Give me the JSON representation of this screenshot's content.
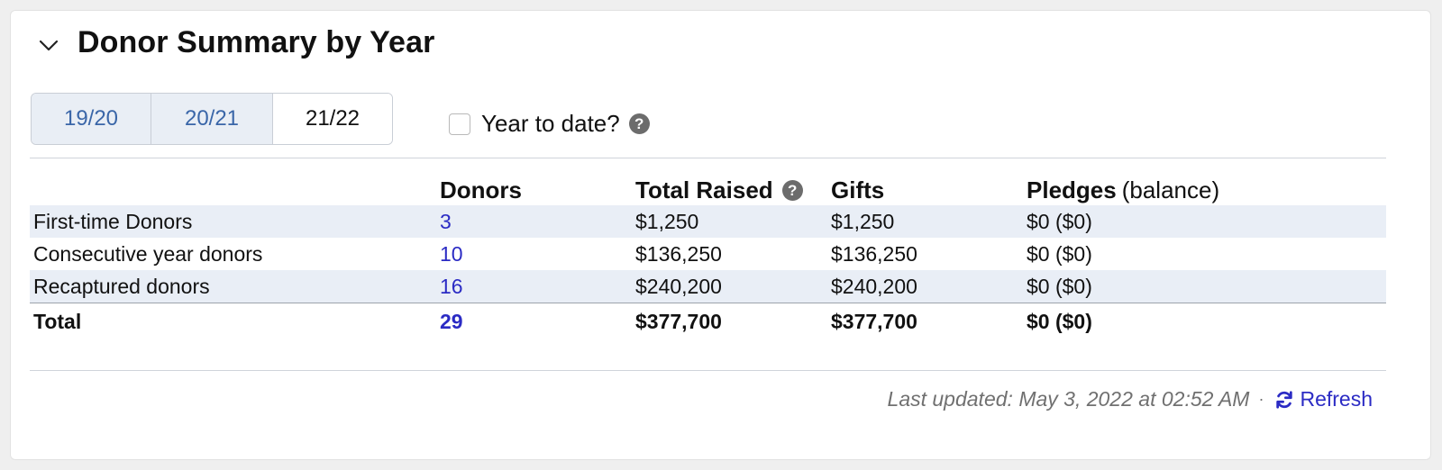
{
  "panel": {
    "title": "Donor Summary by Year"
  },
  "tabs": [
    {
      "label": "19/20",
      "active": false
    },
    {
      "label": "20/21",
      "active": false
    },
    {
      "label": "21/22",
      "active": true
    }
  ],
  "year_to_date": {
    "label": "Year to date?",
    "checked": false
  },
  "table": {
    "headers": {
      "donors": "Donors",
      "total_raised": "Total Raised",
      "gifts": "Gifts",
      "pledges": "Pledges",
      "pledges_note": "(balance)"
    },
    "rows": [
      {
        "label": "First-time Donors",
        "donors": "3",
        "total_raised": "$1,250",
        "gifts": "$1,250",
        "pledges": "$0 ($0)"
      },
      {
        "label": "Consecutive year donors",
        "donors": "10",
        "total_raised": "$136,250",
        "gifts": "$136,250",
        "pledges": "$0 ($0)"
      },
      {
        "label": "Recaptured donors",
        "donors": "16",
        "total_raised": "$240,200",
        "gifts": "$240,200",
        "pledges": "$0 ($0)"
      }
    ],
    "total": {
      "label": "Total",
      "donors": "29",
      "total_raised": "$377,700",
      "gifts": "$377,700",
      "pledges": "$0 ($0)"
    }
  },
  "footer": {
    "last_updated": "Last updated: May 3, 2022 at 02:52 AM",
    "separator": "·",
    "refresh_label": "Refresh"
  },
  "colors": {
    "link": "#2b2bc4",
    "tab_inactive_text": "#3a66a8",
    "tab_inactive_bg": "#e9eef5",
    "row_alt_bg": "#e9eef6"
  },
  "icons": {
    "collapse": "chevron-down-icon",
    "help": "question-circle-icon",
    "refresh": "refresh-icon"
  }
}
